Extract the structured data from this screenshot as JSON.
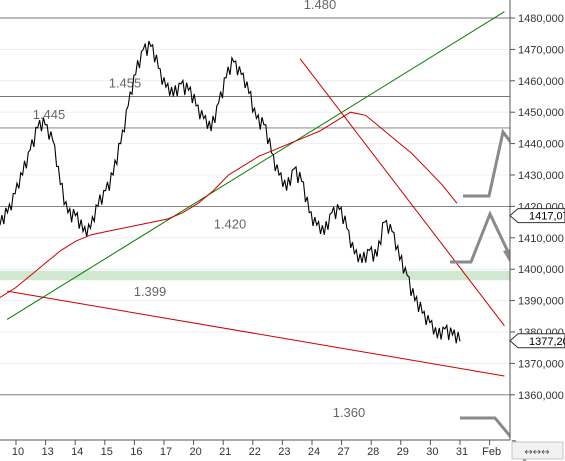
{
  "chart_data": {
    "type": "line",
    "x_labels": [
      "10",
      "13",
      "14",
      "15",
      "16",
      "17",
      "20",
      "21",
      "22",
      "23",
      "24",
      "27",
      "28",
      "29",
      "30",
      "31",
      "Feb"
    ],
    "y_ticks": [
      {
        "value": 1360,
        "label": "1360,000"
      },
      {
        "value": 1370,
        "label": "1370,000"
      },
      {
        "value": 1380,
        "label": "1380,000"
      },
      {
        "value": 1390,
        "label": "1390,000"
      },
      {
        "value": 1400,
        "label": "1400,000"
      },
      {
        "value": 1410,
        "label": "1410,000"
      },
      {
        "value": 1420,
        "label": "1420,000"
      },
      {
        "value": 1430,
        "label": "1430,000"
      },
      {
        "value": 1440,
        "label": "1440,000"
      },
      {
        "value": 1450,
        "label": "1450,000"
      },
      {
        "value": 1460,
        "label": "1460,000"
      },
      {
        "value": 1470,
        "label": "1470,000"
      },
      {
        "value": 1480,
        "label": "1480,000"
      }
    ],
    "ylim": [
      1352,
      1486
    ],
    "price_tags": [
      {
        "value": 1417.07,
        "label": "1417,07"
      },
      {
        "value": 1377.2,
        "label": "1377,20"
      }
    ],
    "levels": [
      {
        "value": 1480,
        "label": "1.480"
      },
      {
        "value": 1455,
        "label": "1.455"
      },
      {
        "value": 1445,
        "label": "1.445"
      },
      {
        "value": 1420,
        "label": "1.420"
      },
      {
        "value": 1360,
        "label": "1.360"
      }
    ],
    "zone": {
      "low": 1396.5,
      "high": 1399.5,
      "label": "1.399",
      "color": "#cfe8cf"
    },
    "series": [
      {
        "values": [
          1414,
          1418,
          1424,
          1430,
          1438,
          1445,
          1446,
          1441,
          1427,
          1418,
          1417,
          1412,
          1413,
          1420,
          1425,
          1430,
          1440,
          1452,
          1462,
          1470,
          1471,
          1464,
          1458,
          1455,
          1459,
          1457,
          1452,
          1448,
          1444,
          1453,
          1461,
          1466,
          1462,
          1456,
          1448,
          1446,
          1437,
          1430,
          1425,
          1432,
          1428,
          1418,
          1414,
          1411,
          1418,
          1419,
          1413,
          1405,
          1402,
          1406,
          1404,
          1415,
          1412,
          1403,
          1398,
          1390,
          1386,
          1383,
          1378,
          1381,
          1379,
          1377
        ],
        "color": "#000000"
      },
      {
        "values": [
          1391,
          1394,
          1398,
          1402,
          1406,
          1409,
          1411,
          1412,
          1413,
          1414,
          1415,
          1416,
          1418,
          1421,
          1425,
          1430,
          1433,
          1436,
          1438,
          1440,
          1442,
          1444,
          1447,
          1450,
          1449,
          1445,
          1441,
          1437,
          1432,
          1427,
          1421
        ],
        "color": "#cc0000"
      }
    ],
    "trendlines": [
      {
        "from": [
          -0.3,
          1384
        ],
        "to": [
          16.5,
          1482
        ],
        "color": "#008000"
      },
      {
        "from": [
          -0.3,
          1393
        ],
        "to": [
          16.5,
          1366
        ],
        "color": "#cc0000"
      },
      {
        "from": [
          9.6,
          1467
        ],
        "to": [
          16.5,
          1382
        ],
        "color": "#cc0000"
      }
    ],
    "annotations": [
      "projected upward arrow",
      "projected downward arrow",
      "projected lower path"
    ],
    "grid": true,
    "colors": {
      "candles": "#000000",
      "moving_average": "#cc0000",
      "support_trend": "#008000",
      "resistance_trend": "#cc0000",
      "levels": "#666666",
      "zone": "#cfe8cf",
      "arrows": "#8a8a8a"
    }
  },
  "toolbar": {
    "nav_glyphs": "↔↔↔"
  }
}
